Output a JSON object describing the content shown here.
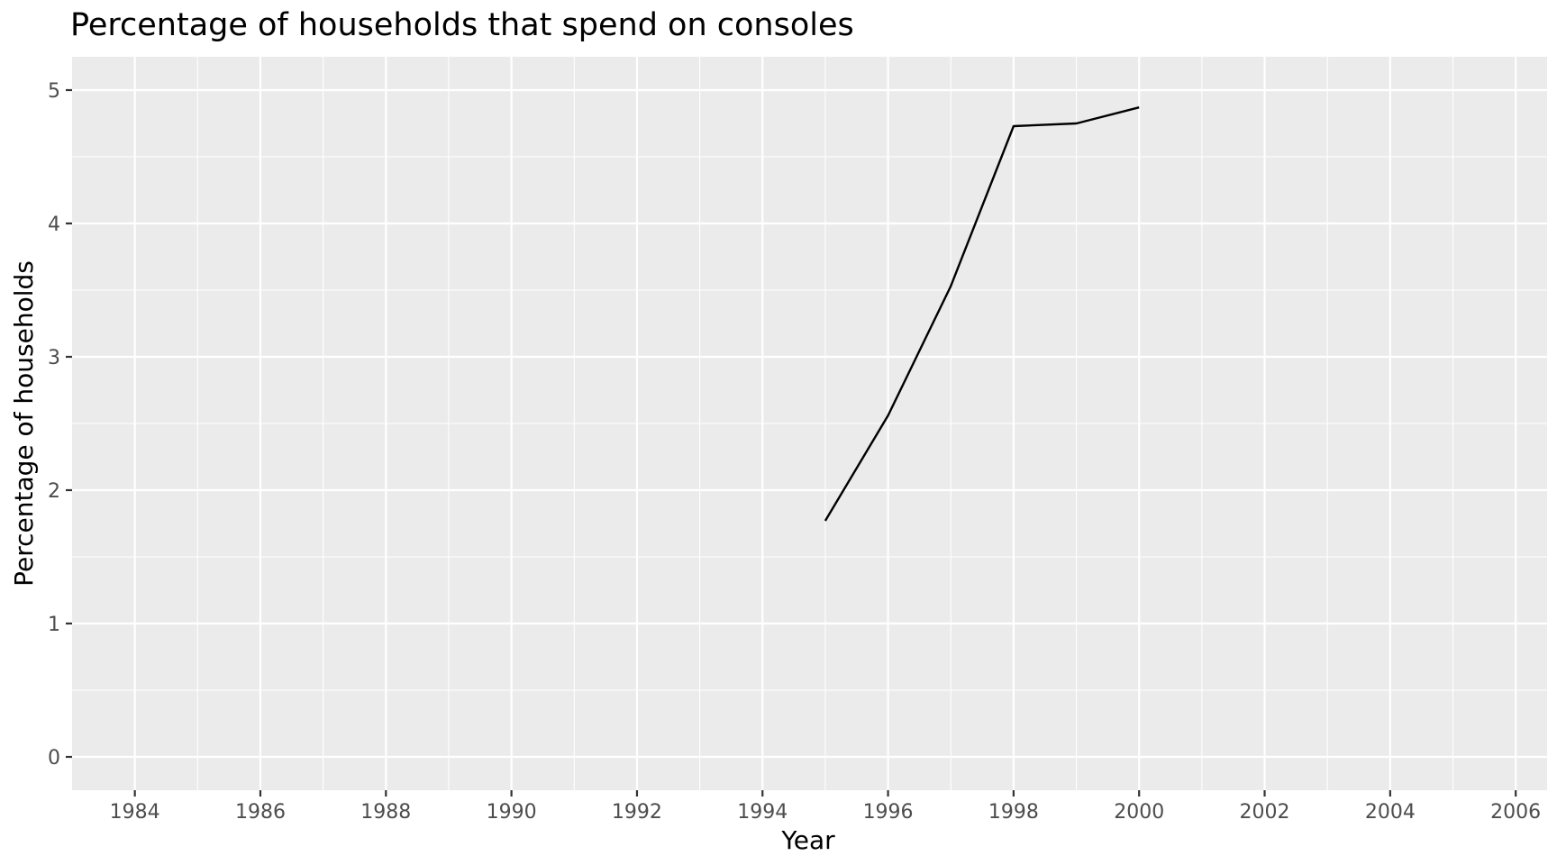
{
  "chart_data": {
    "type": "line",
    "title": "Percentage of households that spend on consoles",
    "xlabel": "Year",
    "ylabel": "Percentage of households",
    "xlim": [
      1983,
      2006.5
    ],
    "ylim": [
      -0.25,
      5.25
    ],
    "x_ticks": [
      1984,
      1986,
      1988,
      1990,
      1992,
      1994,
      1996,
      1998,
      2000,
      2002,
      2004,
      2006
    ],
    "y_ticks": [
      0,
      1,
      2,
      3,
      4,
      5
    ],
    "grid": true,
    "legend": "none",
    "background": "#ebebeb",
    "line_color": "#000000",
    "series": [
      {
        "x": [
          1995,
          1996,
          1997,
          1998,
          1999,
          2000
        ],
        "values": [
          1.77,
          2.56,
          3.53,
          4.73,
          4.75,
          4.87
        ]
      }
    ]
  }
}
